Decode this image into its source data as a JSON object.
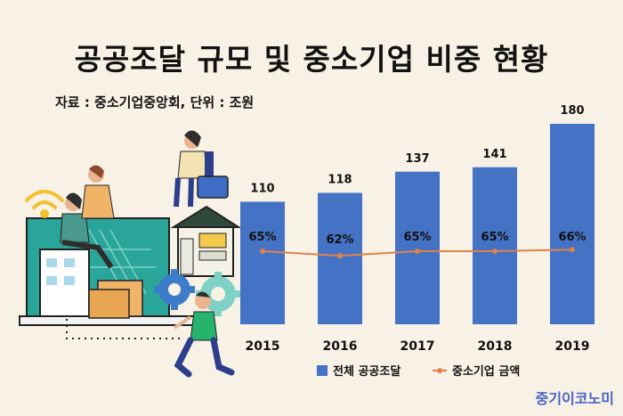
{
  "title": "공공조달 규모 및 중소기업 비중 현황",
  "source": "자료 : 중소기업중앙회, 단위 : 조원",
  "brand": "중기이코노미",
  "colors": {
    "bar": "#4472c4",
    "line": "#e0824a",
    "background": "#f8f1e5"
  },
  "chart_data": {
    "type": "bar",
    "categories": [
      "2015",
      "2016",
      "2017",
      "2018",
      "2019"
    ],
    "series": [
      {
        "name": "전체 공공조달",
        "type": "bar",
        "values": [
          110,
          118,
          137,
          141,
          180
        ]
      },
      {
        "name": "중소기업 금액",
        "type": "line",
        "values": [
          65,
          62,
          65,
          65,
          66
        ],
        "value_labels": [
          "65%",
          "62%",
          "65%",
          "65%",
          "66%"
        ]
      }
    ],
    "unit": "조원",
    "legend_position": "bottom",
    "grid": false
  }
}
